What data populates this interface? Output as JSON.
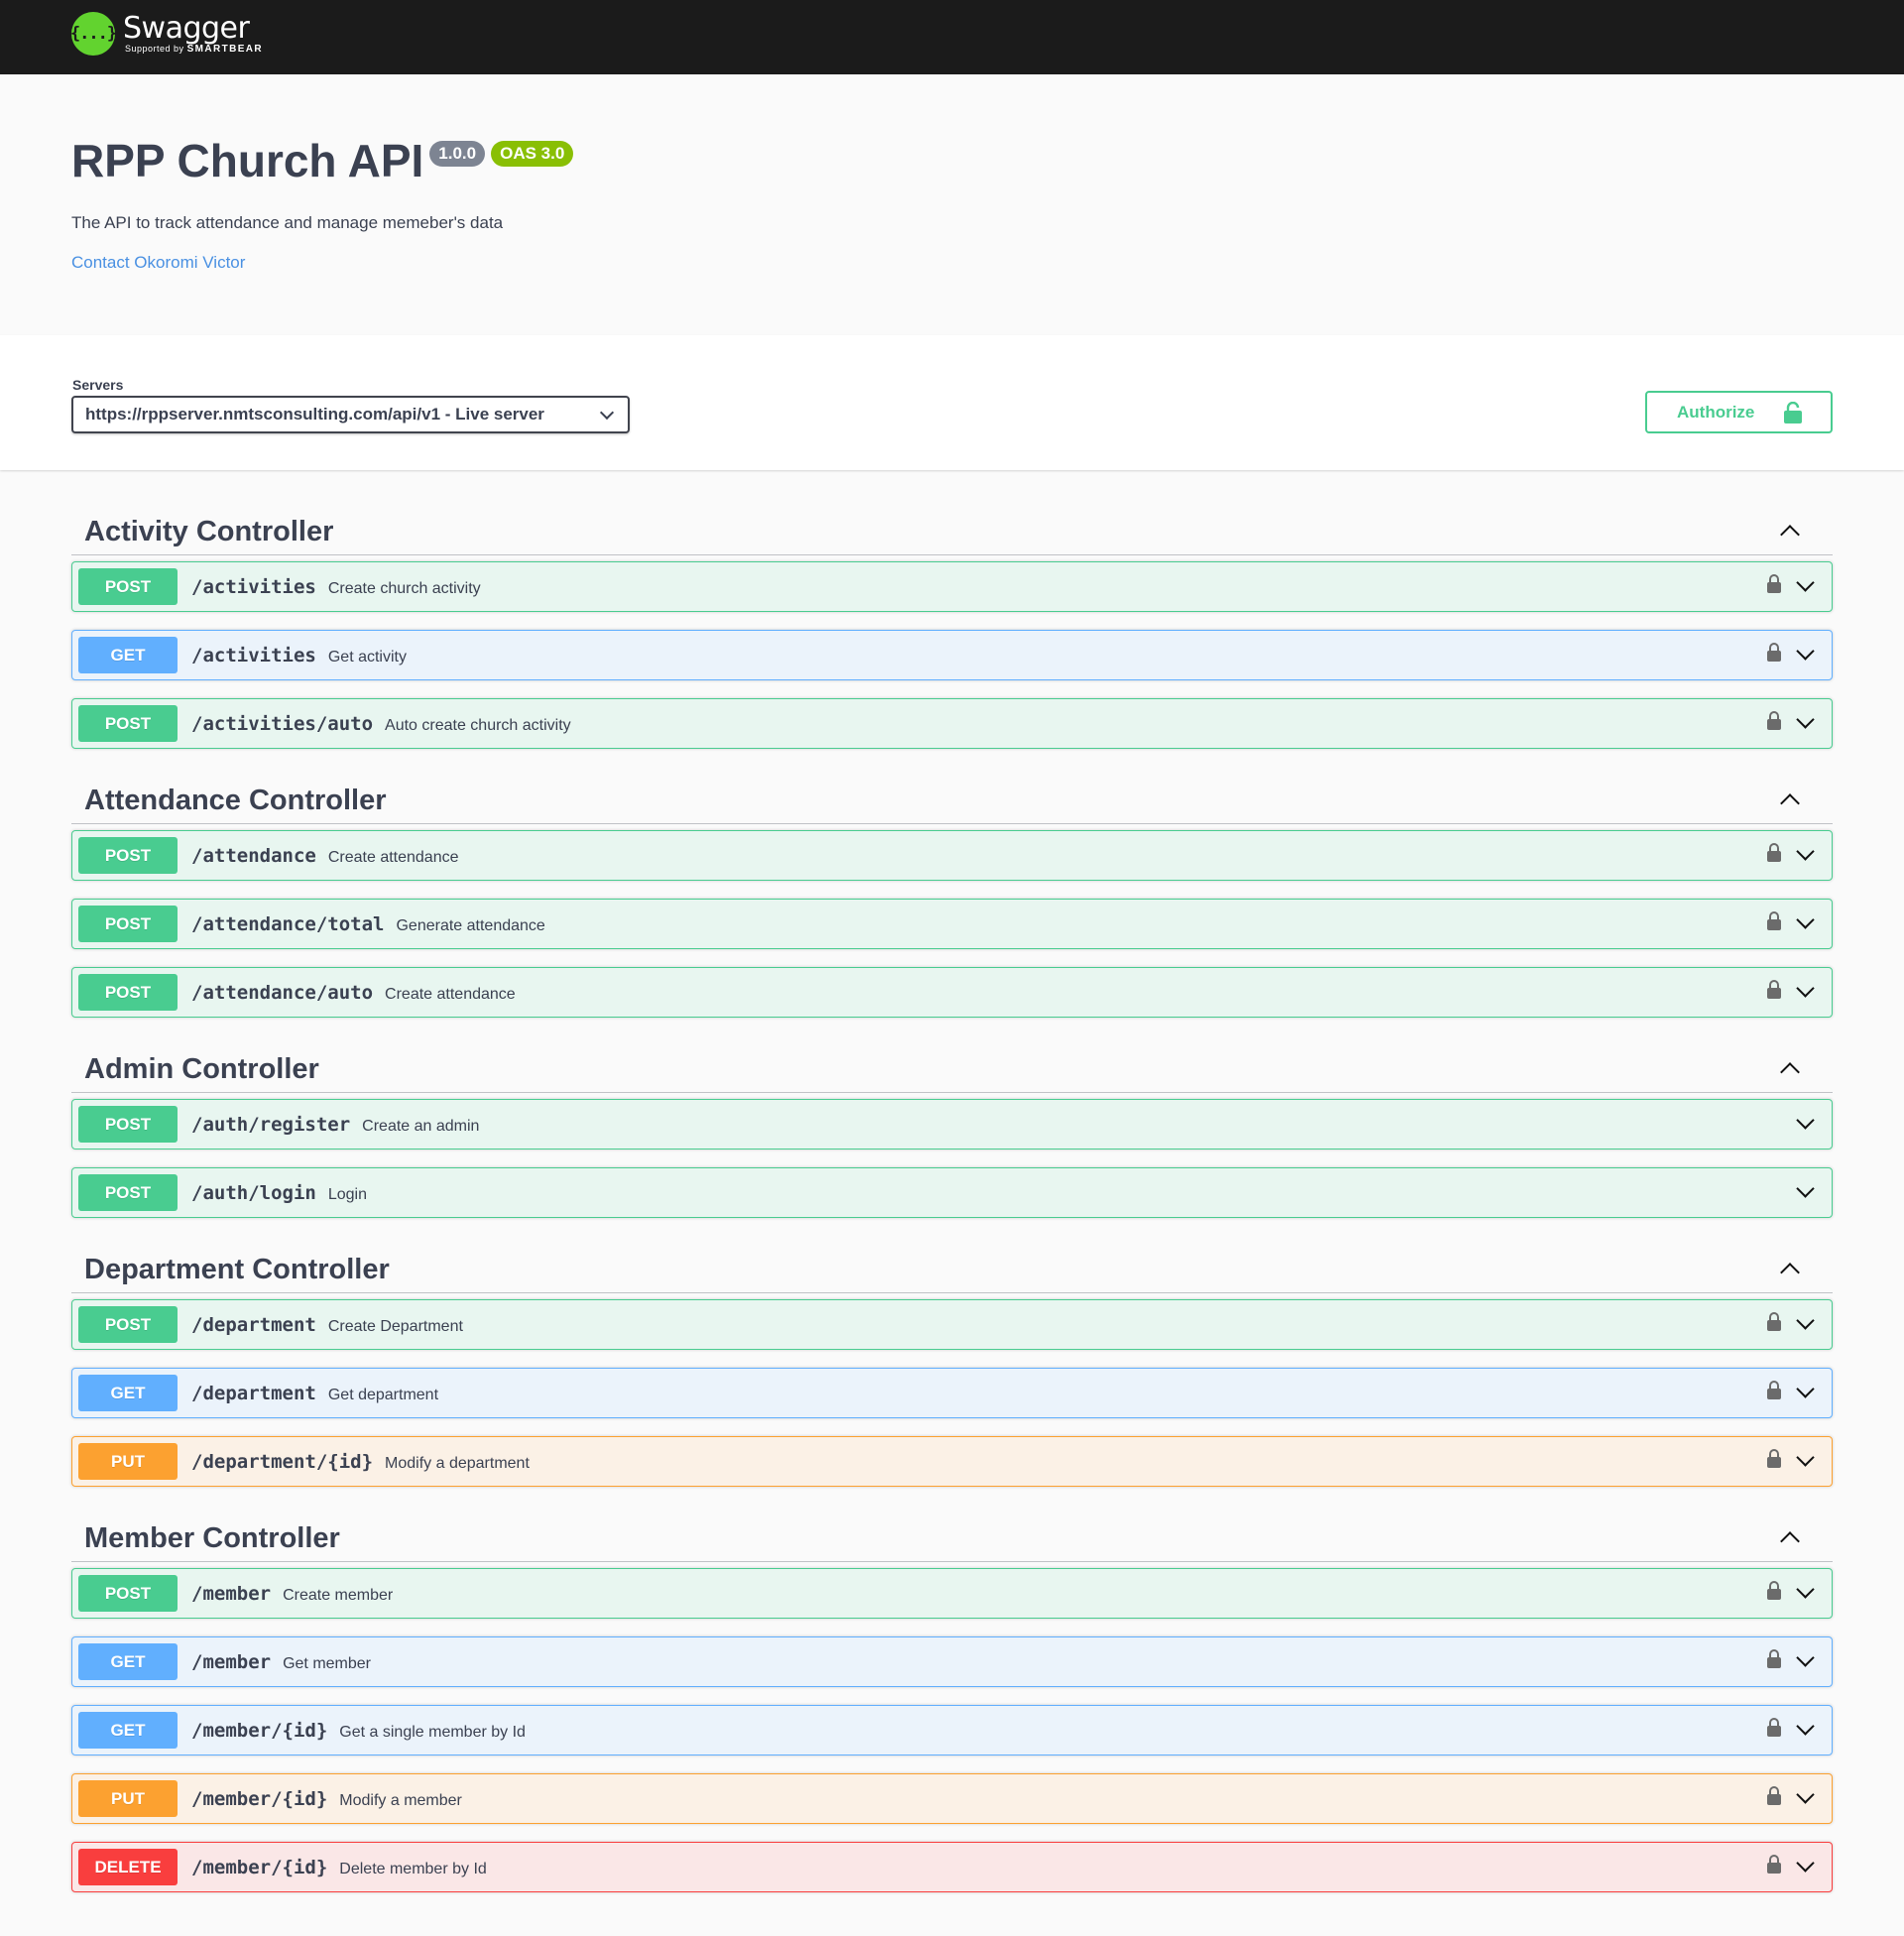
{
  "topbar": {
    "logo_mark": "{...}",
    "logo_name": "Swagger",
    "logo_sub_prefix": "Supported by",
    "logo_sub_brand": "SMARTBEAR"
  },
  "info": {
    "title": "RPP Church API",
    "version": "1.0.0",
    "oas": "OAS 3.0",
    "description": "The API to track attendance and manage memeber's data",
    "contact": "Contact Okoromi Victor"
  },
  "servers": {
    "label": "Servers",
    "selected": "https://rppserver.nmtsconsulting.com/api/v1 - Live server"
  },
  "authorize_label": "Authorize",
  "colors": {
    "post": "#49cc90",
    "get": "#61affe",
    "put": "#fca130",
    "delete": "#f93e3e"
  },
  "tags": [
    {
      "name": "Activity Controller",
      "operations": [
        {
          "method": "POST",
          "path": "/activities",
          "summary": "Create church activity",
          "lock": true
        },
        {
          "method": "GET",
          "path": "/activities",
          "summary": "Get activity",
          "lock": true
        },
        {
          "method": "POST",
          "path": "/activities/auto",
          "summary": "Auto create church activity",
          "lock": true
        }
      ]
    },
    {
      "name": "Attendance Controller",
      "operations": [
        {
          "method": "POST",
          "path": "/attendance",
          "summary": "Create attendance",
          "lock": true
        },
        {
          "method": "POST",
          "path": "/attendance/total",
          "summary": "Generate attendance",
          "lock": true
        },
        {
          "method": "POST",
          "path": "/attendance/auto",
          "summary": "Create attendance",
          "lock": true
        }
      ]
    },
    {
      "name": "Admin Controller",
      "operations": [
        {
          "method": "POST",
          "path": "/auth/register",
          "summary": "Create an admin",
          "lock": false
        },
        {
          "method": "POST",
          "path": "/auth/login",
          "summary": "Login",
          "lock": false
        }
      ]
    },
    {
      "name": "Department Controller",
      "operations": [
        {
          "method": "POST",
          "path": "/department",
          "summary": "Create Department",
          "lock": true
        },
        {
          "method": "GET",
          "path": "/department",
          "summary": "Get department",
          "lock": true
        },
        {
          "method": "PUT",
          "path": "/department/{id}",
          "summary": "Modify a department",
          "lock": true
        }
      ]
    },
    {
      "name": "Member Controller",
      "operations": [
        {
          "method": "POST",
          "path": "/member",
          "summary": "Create member",
          "lock": true
        },
        {
          "method": "GET",
          "path": "/member",
          "summary": "Get member",
          "lock": true
        },
        {
          "method": "GET",
          "path": "/member/{id}",
          "summary": "Get a single member by Id",
          "lock": true
        },
        {
          "method": "PUT",
          "path": "/member/{id}",
          "summary": "Modify a member",
          "lock": true
        },
        {
          "method": "DELETE",
          "path": "/member/{id}",
          "summary": "Delete member by Id",
          "lock": true
        }
      ]
    }
  ]
}
